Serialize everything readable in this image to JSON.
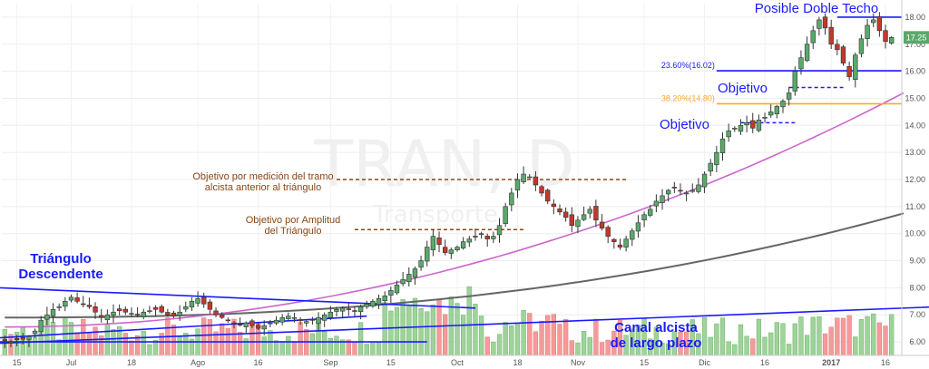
{
  "chart_data": {
    "type": "candlestick",
    "watermark": {
      "symbol": "TRAN, D",
      "name": "Transporte"
    },
    "price_axis": {
      "ylim": [
        5.5,
        18.5
      ],
      "ticks": [
        "6.00",
        "7.00",
        "8.00",
        "9.00",
        "10.00",
        "11.00",
        "12.00",
        "13.00",
        "14.00",
        "15.00",
        "16.00",
        "17.00",
        "18.00"
      ],
      "last_price_label": "17.25",
      "last_price": 17.25,
      "last_color": "#5aa96b"
    },
    "time_axis": {
      "labels": [
        {
          "text": "15",
          "bar": 2
        },
        {
          "text": "Jul",
          "bar": 11
        },
        {
          "text": "18",
          "bar": 21
        },
        {
          "text": "Ago",
          "bar": 32
        },
        {
          "text": "16",
          "bar": 42
        },
        {
          "text": "Sep",
          "bar": 54
        },
        {
          "text": "15",
          "bar": 64
        },
        {
          "text": "Oct",
          "bar": 75
        },
        {
          "text": "18",
          "bar": 85
        },
        {
          "text": "Nov",
          "bar": 95
        },
        {
          "text": "15",
          "bar": 106
        },
        {
          "text": "Dic",
          "bar": 116
        },
        {
          "text": "16",
          "bar": 126
        },
        {
          "text": "2017",
          "bar": 137
        },
        {
          "text": "16",
          "bar": 146
        }
      ]
    },
    "colors": {
      "up": "#5aa96b",
      "down": "#c0392b",
      "vol_up": "#9ed39a",
      "vol_down": "#f59a9a",
      "ma_fast": "#cc66cc",
      "ma_slow": "#666666",
      "trend": "#1a1aff",
      "fib": "#ffa726",
      "annotation_brown": "#8b4513"
    },
    "closes": [
      6.05,
      6.0,
      6.08,
      6.1,
      6.2,
      6.4,
      6.8,
      7.0,
      7.2,
      7.3,
      7.5,
      7.65,
      7.5,
      7.4,
      7.3,
      7.1,
      6.9,
      7.0,
      7.1,
      7.15,
      7.1,
      7.05,
      7.0,
      7.1,
      7.15,
      7.2,
      7.1,
      7.0,
      6.95,
      7.1,
      7.3,
      7.5,
      7.6,
      7.4,
      7.2,
      7.0,
      6.9,
      6.8,
      6.7,
      6.65,
      6.7,
      6.6,
      6.5,
      6.6,
      6.7,
      6.8,
      6.9,
      6.95,
      6.9,
      6.8,
      6.75,
      6.8,
      6.9,
      7.0,
      7.1,
      7.2,
      7.25,
      7.2,
      7.15,
      7.3,
      7.4,
      7.5,
      7.6,
      7.7,
      7.9,
      8.1,
      8.3,
      8.5,
      8.7,
      9.0,
      9.5,
      9.9,
      9.6,
      9.3,
      9.4,
      9.5,
      9.7,
      9.8,
      9.9,
      10.0,
      9.8,
      9.9,
      10.3,
      11.0,
      11.5,
      12.0,
      12.2,
      12.1,
      11.8,
      11.5,
      11.2,
      11.0,
      10.8,
      10.6,
      10.3,
      10.5,
      10.7,
      10.9,
      10.5,
      10.2,
      9.9,
      9.7,
      9.5,
      9.8,
      10.1,
      10.4,
      10.7,
      10.9,
      11.2,
      11.4,
      11.6,
      11.7,
      11.6,
      11.5,
      11.6,
      11.8,
      12.2,
      12.6,
      13.0,
      13.5,
      13.8,
      13.9,
      14.0,
      14.1,
      13.9,
      14.2,
      14.3,
      14.5,
      14.7,
      14.9,
      15.2,
      16.0,
      16.5,
      17.0,
      17.5,
      17.9,
      17.6,
      17.0,
      16.8,
      16.3,
      15.8,
      16.6,
      17.2,
      17.7,
      17.9,
      17.5,
      17.1,
      17.25
    ],
    "ma_fast": {
      "start": [
        0,
        6.55
      ],
      "end": [
        149,
        15.2
      ]
    },
    "ma_slow": {
      "start": [
        0,
        6.9
      ],
      "end": [
        149,
        10.75
      ]
    },
    "fib_levels": [
      {
        "label": "23.60%(16.02)",
        "price": 16.02,
        "color": "#1a1aff",
        "from_bar": 118
      },
      {
        "label": "38.20%(14.80)",
        "price": 14.8,
        "color": "#ffa726",
        "from_bar": 118
      }
    ],
    "resistance": {
      "price": 18.0,
      "from_bar": 138
    },
    "trendlines": [
      {
        "name": "descending-triangle-top",
        "p1": [
          -1,
          8.0
        ],
        "p2": [
          78,
          7.25
        ],
        "color": "#1a1aff"
      },
      {
        "name": "descending-triangle-base",
        "p1": [
          -1,
          6.0
        ],
        "p2": [
          70,
          6.0
        ],
        "color": "#1a1aff"
      },
      {
        "name": "long-term-channel",
        "p1": [
          -1,
          5.95
        ],
        "p2": [
          155,
          7.3
        ],
        "color": "#1a1aff"
      },
      {
        "name": "triangle-lower-inner",
        "p1": [
          -1,
          6.15
        ],
        "p2": [
          60,
          6.95
        ],
        "color": "#1a1aff"
      }
    ],
    "target_lines": [
      {
        "name": "objective-measured-move",
        "price": 12.0,
        "from_bar": 55,
        "to_bar": 103,
        "color": "#8b4513"
      },
      {
        "name": "objective-triangle-amplitude",
        "price": 10.15,
        "from_bar": 58,
        "to_bar": 86,
        "color": "#8b4513"
      },
      {
        "name": "objetivo-upper",
        "price": 15.4,
        "from_bar": 130,
        "to_bar": 139,
        "color": "#1a1aff"
      },
      {
        "name": "objetivo-lower",
        "price": 14.1,
        "from_bar": 122,
        "to_bar": 131,
        "color": "#1a1aff"
      }
    ],
    "annotations": {
      "posible_doble_techo": "Posible Doble Techo",
      "objetivo_upper": "Objetivo",
      "objetivo_lower": "Objetivo",
      "medicion_line1": "Objetivo por medición del  tramo",
      "medicion_line2": "alcista anterior al triángulo",
      "amplitud_line1": "Objetivo por Amplitud",
      "amplitud_line2": "del Triángulo",
      "triangulo_line1": "Triángulo",
      "triangulo_line2": "Descendente",
      "canal_line1": "Canal alcista",
      "canal_line2": "de largo plazo"
    }
  }
}
